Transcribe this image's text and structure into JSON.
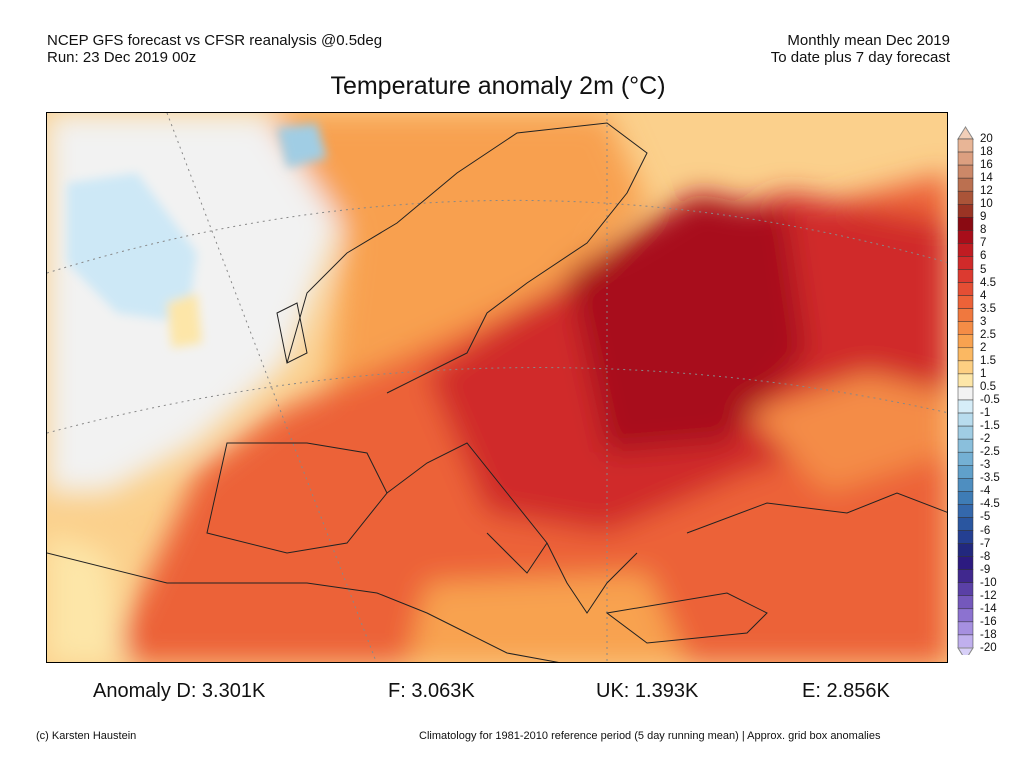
{
  "header": {
    "left_line1": "NCEP GFS forecast vs CFSR reanalysis @0.5deg",
    "left_line2": "Run: 23 Dec 2019 00z",
    "right_line1": "Monthly mean Dec 2019",
    "right_line2": "To date plus 7 day forecast"
  },
  "title": "Temperature anomaly 2m (°C)",
  "map": {
    "region": "Europe",
    "field": "2m temperature anomaly"
  },
  "stats": {
    "d": "Anomaly D: 3.301K",
    "f": "F: 3.063K",
    "uk": "UK: 1.393K",
    "e": "E: 2.856K"
  },
  "footer": {
    "credit": "(c) Karsten Haustein",
    "note": "Climatology for 1981-2010 reference period (5 day running mean) | Approx. grid box anomalies"
  },
  "colorbar": {
    "labels": [
      "20",
      "18",
      "16",
      "14",
      "12",
      "10",
      "9",
      "8",
      "7",
      "6",
      "5",
      "4.5",
      "4",
      "3.5",
      "3",
      "2.5",
      "2",
      "1.5",
      "1",
      "0.5",
      "-0.5",
      "-1",
      "-1.5",
      "-2",
      "-2.5",
      "-3",
      "-3.5",
      "-4",
      "-4.5",
      "-5",
      "-6",
      "-7",
      "-8",
      "-9",
      "-10",
      "-12",
      "-14",
      "-16",
      "-18",
      "-20"
    ],
    "colors": [
      "#f2cfb8",
      "#e8b596",
      "#dc9f80",
      "#cc8868",
      "#bb7050",
      "#aa5438",
      "#9a3424",
      "#8a0a12",
      "#a80e1a",
      "#c01c22",
      "#d02a2a",
      "#dc3a30",
      "#e44e34",
      "#ec6238",
      "#f0783e",
      "#f48c46",
      "#f8a250",
      "#fbb862",
      "#fdcf82",
      "#fde6a8",
      "#f3f3f3",
      "#d6edf8",
      "#b8dcee",
      "#a0cde4",
      "#8abfdc",
      "#74b0d4",
      "#60a0ca",
      "#4e8ec0",
      "#3e7cb6",
      "#3468ac",
      "#2a56a0",
      "#243f92",
      "#22287e",
      "#2c1a80",
      "#40288e",
      "#5a40a6",
      "#7458bc",
      "#8c72d0",
      "#a690e0",
      "#c0b0ee",
      "#d8d0f8"
    ]
  }
}
